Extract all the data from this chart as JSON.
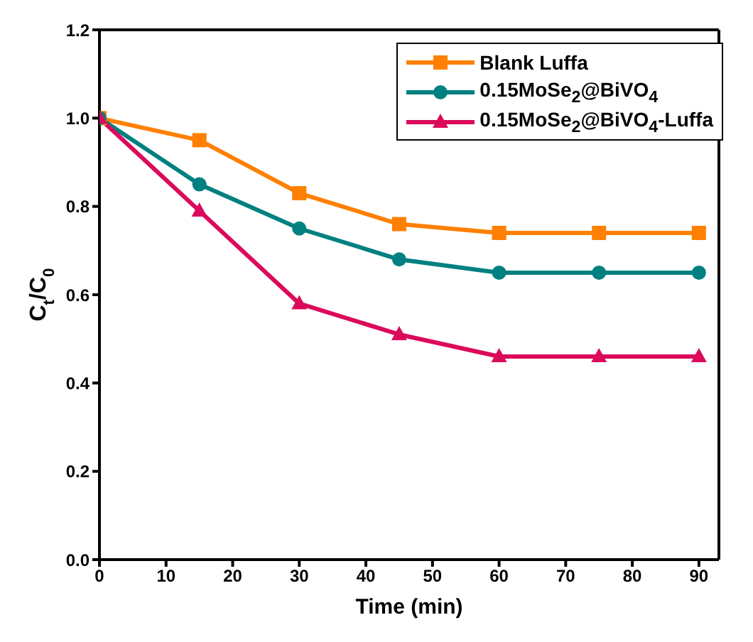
{
  "chart_data": {
    "type": "line",
    "xlabel": "Time (min)",
    "ylabel": "C$_{t}$/C$_{0}$",
    "x": [
      0,
      15,
      30,
      45,
      60,
      75,
      90
    ],
    "series": [
      {
        "name": "Blank Luffa",
        "color": "#ff8000",
        "marker": "square",
        "values": [
          1.0,
          0.95,
          0.83,
          0.76,
          0.74,
          0.74,
          0.74
        ]
      },
      {
        "name": "0.15MoSe$_{2}$@BiVO$_{4}$",
        "color": "#008080",
        "marker": "circle",
        "values": [
          1.0,
          0.85,
          0.75,
          0.68,
          0.65,
          0.65,
          0.65
        ]
      },
      {
        "name": "0.15MoSe$_{2}$@BiVO$_{4}$-Luffa",
        "color": "#db0a5b",
        "marker": "triangle",
        "values": [
          1.0,
          0.79,
          0.58,
          0.51,
          0.46,
          0.46,
          0.46
        ]
      }
    ],
    "xlim": [
      0,
      93
    ],
    "xticks": [
      0,
      10,
      20,
      30,
      40,
      50,
      60,
      70,
      80,
      90
    ],
    "ylim": [
      0,
      1.2
    ],
    "yticks": [
      {
        "value": 0,
        "label": "0.0"
      },
      {
        "value": 0.2,
        "label": "0.2"
      },
      {
        "value": 0.4,
        "label": "0.4"
      },
      {
        "value": 0.6,
        "label": "0.6"
      },
      {
        "value": 0.8,
        "label": "0.8"
      },
      {
        "value": 1,
        "label": "1.0"
      },
      {
        "value": 1.2,
        "label": "1.2"
      }
    ],
    "grid": false,
    "legend": "top right",
    "line_style": "solid"
  }
}
